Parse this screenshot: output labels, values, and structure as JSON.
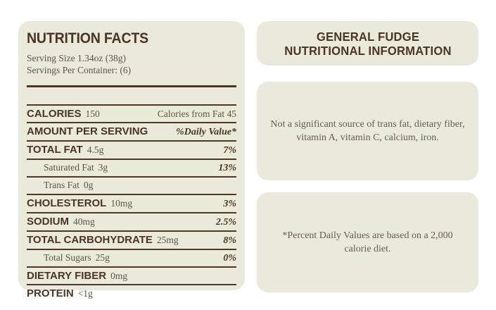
{
  "colors": {
    "page_bg": "#ffffff",
    "panel_bg": "#e9e9dc",
    "rule_brown": "#4d3328",
    "heading_text": "#4d3328",
    "body_text": "#5f544a"
  },
  "nutrition": {
    "title": "NUTRITION FACTS",
    "serving_size": "Serving Size 1.34oz (38g)",
    "servings_per_container": "Servings Per Container: (6)",
    "rows": [
      {
        "label": "CALORIES",
        "amount": "150",
        "right": "Calories from Fat 45"
      },
      {
        "label": "AMOUNT PER SERVING",
        "amount": "",
        "right": "%Daily Value*"
      },
      {
        "label": "TOTAL FAT",
        "amount": "4.5g",
        "right": "7%"
      },
      {
        "label": "Saturated Fat",
        "amount": "3g",
        "right": "13%"
      },
      {
        "label": "Trans Fat",
        "amount": "0g",
        "right": ""
      },
      {
        "label": "CHOLESTEROL",
        "amount": "10mg",
        "right": "3%"
      },
      {
        "label": "SODIUM",
        "amount": "40mg",
        "right": "2.5%"
      },
      {
        "label": "TOTAL CARBOHYDRATE",
        "amount": "25mg",
        "right": "8%"
      },
      {
        "label": "Total Sugars",
        "amount": "25g",
        "right": "0%"
      },
      {
        "label": "DIETARY FIBER",
        "amount": "0mg",
        "right": ""
      },
      {
        "label": "PROTEIN",
        "amount": "<1g",
        "right": ""
      }
    ]
  },
  "info": {
    "heading": {
      "line1": "GENERAL FUDGE",
      "line2": "NUTRITIONAL INFORMATION"
    },
    "sources_note": {
      "line1": "Not a significant source of trans fat, dietary fiber,",
      "line2": "vitamin A, vitamin C, calcium, iron."
    },
    "daily_values_note": {
      "line1": "*Percent Daily Values are based on a 2,000",
      "line2": "calorie diet."
    }
  }
}
